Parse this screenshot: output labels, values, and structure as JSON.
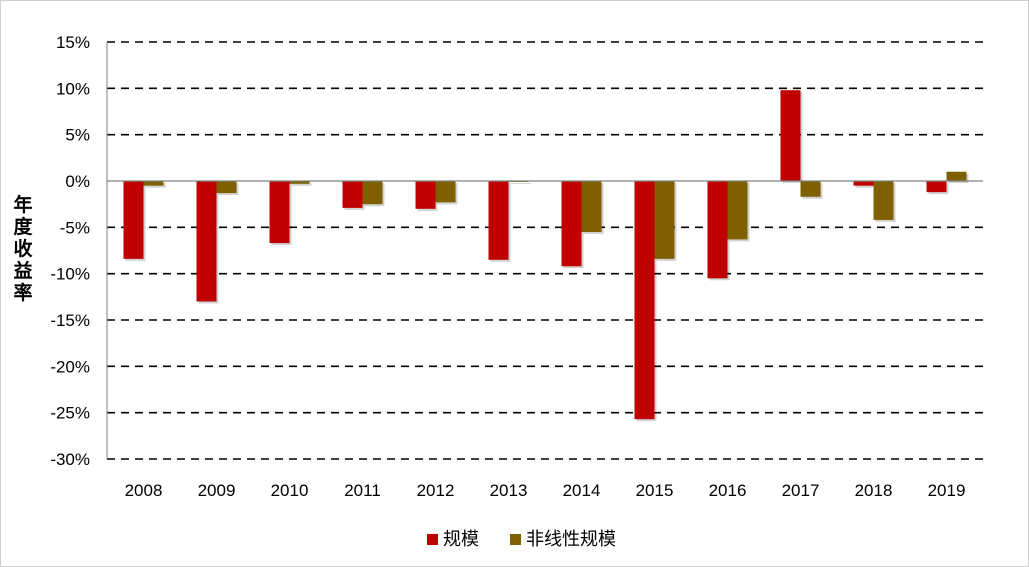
{
  "chart_data": {
    "type": "bar",
    "title": "",
    "xlabel": "",
    "ylabel": "年度收益率",
    "ylim": [
      -30,
      15
    ],
    "yticks": [
      15,
      10,
      5,
      0,
      -5,
      -10,
      -15,
      -20,
      -25,
      -30
    ],
    "ytick_labels": [
      "15%",
      "10%",
      "5%",
      "0%",
      "-5%",
      "-10%",
      "-15%",
      "-20%",
      "-25%",
      "-30%"
    ],
    "grid": "horizontal-dashed",
    "legend_position": "bottom",
    "categories": [
      "2008",
      "2009",
      "2010",
      "2011",
      "2012",
      "2013",
      "2014",
      "2015",
      "2016",
      "2017",
      "2018",
      "2019"
    ],
    "series": [
      {
        "name": "规模",
        "color": "#C00000",
        "values": [
          -8.4,
          -13.0,
          -6.7,
          -2.9,
          -3.0,
          -8.5,
          -9.2,
          -25.7,
          -10.5,
          9.8,
          -0.5,
          -1.2
        ]
      },
      {
        "name": "非线性规模",
        "color": "#7F6000",
        "values": [
          -0.5,
          -1.3,
          -0.3,
          -2.5,
          -2.3,
          -0.1,
          -5.5,
          -8.4,
          -6.3,
          -1.7,
          -4.2,
          1.0
        ]
      }
    ]
  }
}
